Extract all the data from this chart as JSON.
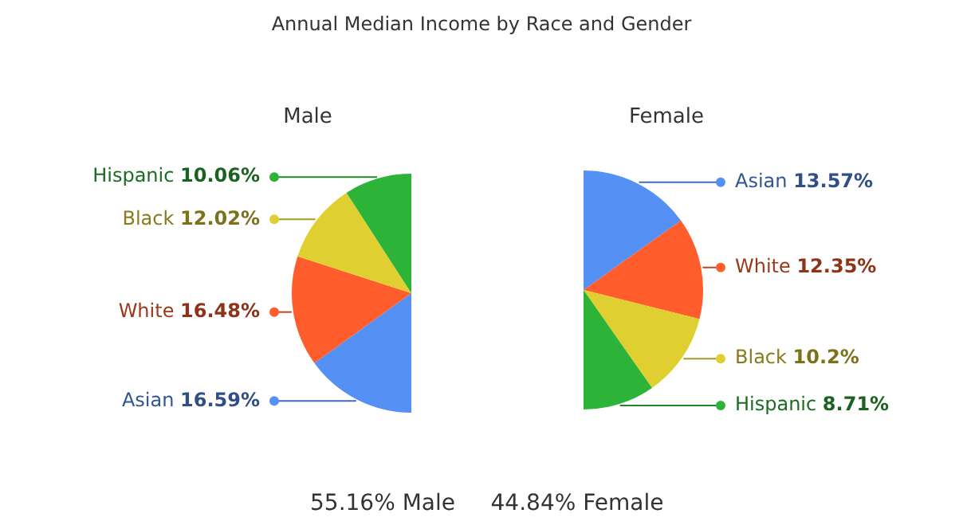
{
  "chart_data": [
    {
      "type": "pie",
      "title": "Annual Median Income by Race and Gender",
      "subtitle": "Male",
      "categories": [
        "Asian",
        "White",
        "Black",
        "Hispanic"
      ],
      "colors": [
        "#5590f4",
        "#ff5d2c",
        "#e0cf30",
        "#2db338"
      ],
      "values": [
        16.59,
        16.48,
        12.02,
        10.06
      ],
      "value_labels": [
        "16.59%",
        "16.48%",
        "12.02%",
        "10.06%"
      ],
      "annotations": [
        "55.16% Male"
      ]
    },
    {
      "type": "pie",
      "subtitle": "Female",
      "categories": [
        "Asian",
        "White",
        "Black",
        "Hispanic"
      ],
      "colors": [
        "#5590f4",
        "#ff5d2c",
        "#e0cf30",
        "#2db338"
      ],
      "values": [
        13.57,
        12.35,
        10.2,
        8.71
      ],
      "value_labels": [
        "13.57%",
        "12.35%",
        "10.2%",
        "8.71%"
      ],
      "legend": "right",
      "annotations": [
        "44.84% Female"
      ]
    }
  ]
}
